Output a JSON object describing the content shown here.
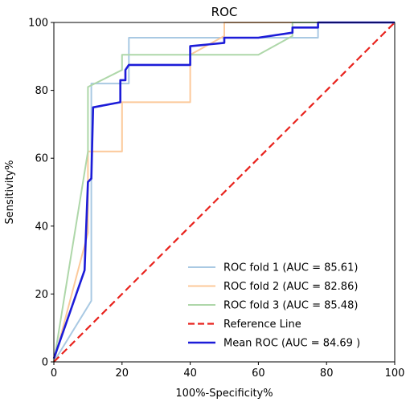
{
  "chart_data": {
    "type": "line",
    "title": "ROC",
    "xlabel": "100%-Specificity%",
    "ylabel": "Sensitivity%",
    "xlim": [
      0,
      100
    ],
    "ylim": [
      0,
      100
    ],
    "xticks": [
      0,
      20,
      40,
      60,
      80,
      100
    ],
    "yticks": [
      0,
      20,
      40,
      60,
      80,
      100
    ],
    "grid": false,
    "legend_position": "lower-right",
    "series": [
      {
        "name": "ROC fold 1 (AUC = 85.61)",
        "color": "#a9c9e3",
        "style": "solid",
        "points": [
          [
            0,
            0
          ],
          [
            11,
            18
          ],
          [
            11,
            82
          ],
          [
            22,
            82
          ],
          [
            22,
            95.5
          ],
          [
            77.5,
            95.5
          ],
          [
            77.5,
            100
          ],
          [
            100,
            100
          ]
        ]
      },
      {
        "name": "ROC fold 2 (AUC = 82.86)",
        "color": "#fcc99a",
        "style": "solid",
        "points": [
          [
            0,
            0
          ],
          [
            10,
            38
          ],
          [
            10,
            62
          ],
          [
            20,
            62
          ],
          [
            20,
            76.5
          ],
          [
            40,
            76.5
          ],
          [
            40,
            90.5
          ],
          [
            50,
            96
          ],
          [
            50,
            100
          ],
          [
            100,
            100
          ]
        ]
      },
      {
        "name": "ROC fold 3 (AUC = 85.48)",
        "color": "#aed7a9",
        "style": "solid",
        "points": [
          [
            0,
            0
          ],
          [
            10,
            62
          ],
          [
            10,
            81
          ],
          [
            20,
            86
          ],
          [
            20,
            90.5
          ],
          [
            60,
            90.5
          ],
          [
            70,
            96
          ],
          [
            70,
            100
          ],
          [
            100,
            100
          ]
        ]
      },
      {
        "name": "Reference Line",
        "color": "#e8221c",
        "style": "dashed",
        "points": [
          [
            0,
            0
          ],
          [
            100,
            100
          ]
        ]
      },
      {
        "name": "Mean ROC (AUC = 84.69 )",
        "color": "#1c1cd8",
        "style": "solid-bold",
        "points": [
          [
            0,
            1
          ],
          [
            9,
            27
          ],
          [
            10,
            53
          ],
          [
            11,
            54
          ],
          [
            11.5,
            75
          ],
          [
            19.5,
            76.5
          ],
          [
            19.5,
            83
          ],
          [
            21,
            83
          ],
          [
            21,
            86
          ],
          [
            22,
            87.5
          ],
          [
            40,
            87.5
          ],
          [
            40,
            93
          ],
          [
            50,
            94
          ],
          [
            50,
            95.5
          ],
          [
            60,
            95.5
          ],
          [
            70,
            97
          ],
          [
            70,
            98.5
          ],
          [
            77.5,
            98.5
          ],
          [
            77.5,
            100
          ],
          [
            100,
            100
          ]
        ]
      }
    ]
  }
}
